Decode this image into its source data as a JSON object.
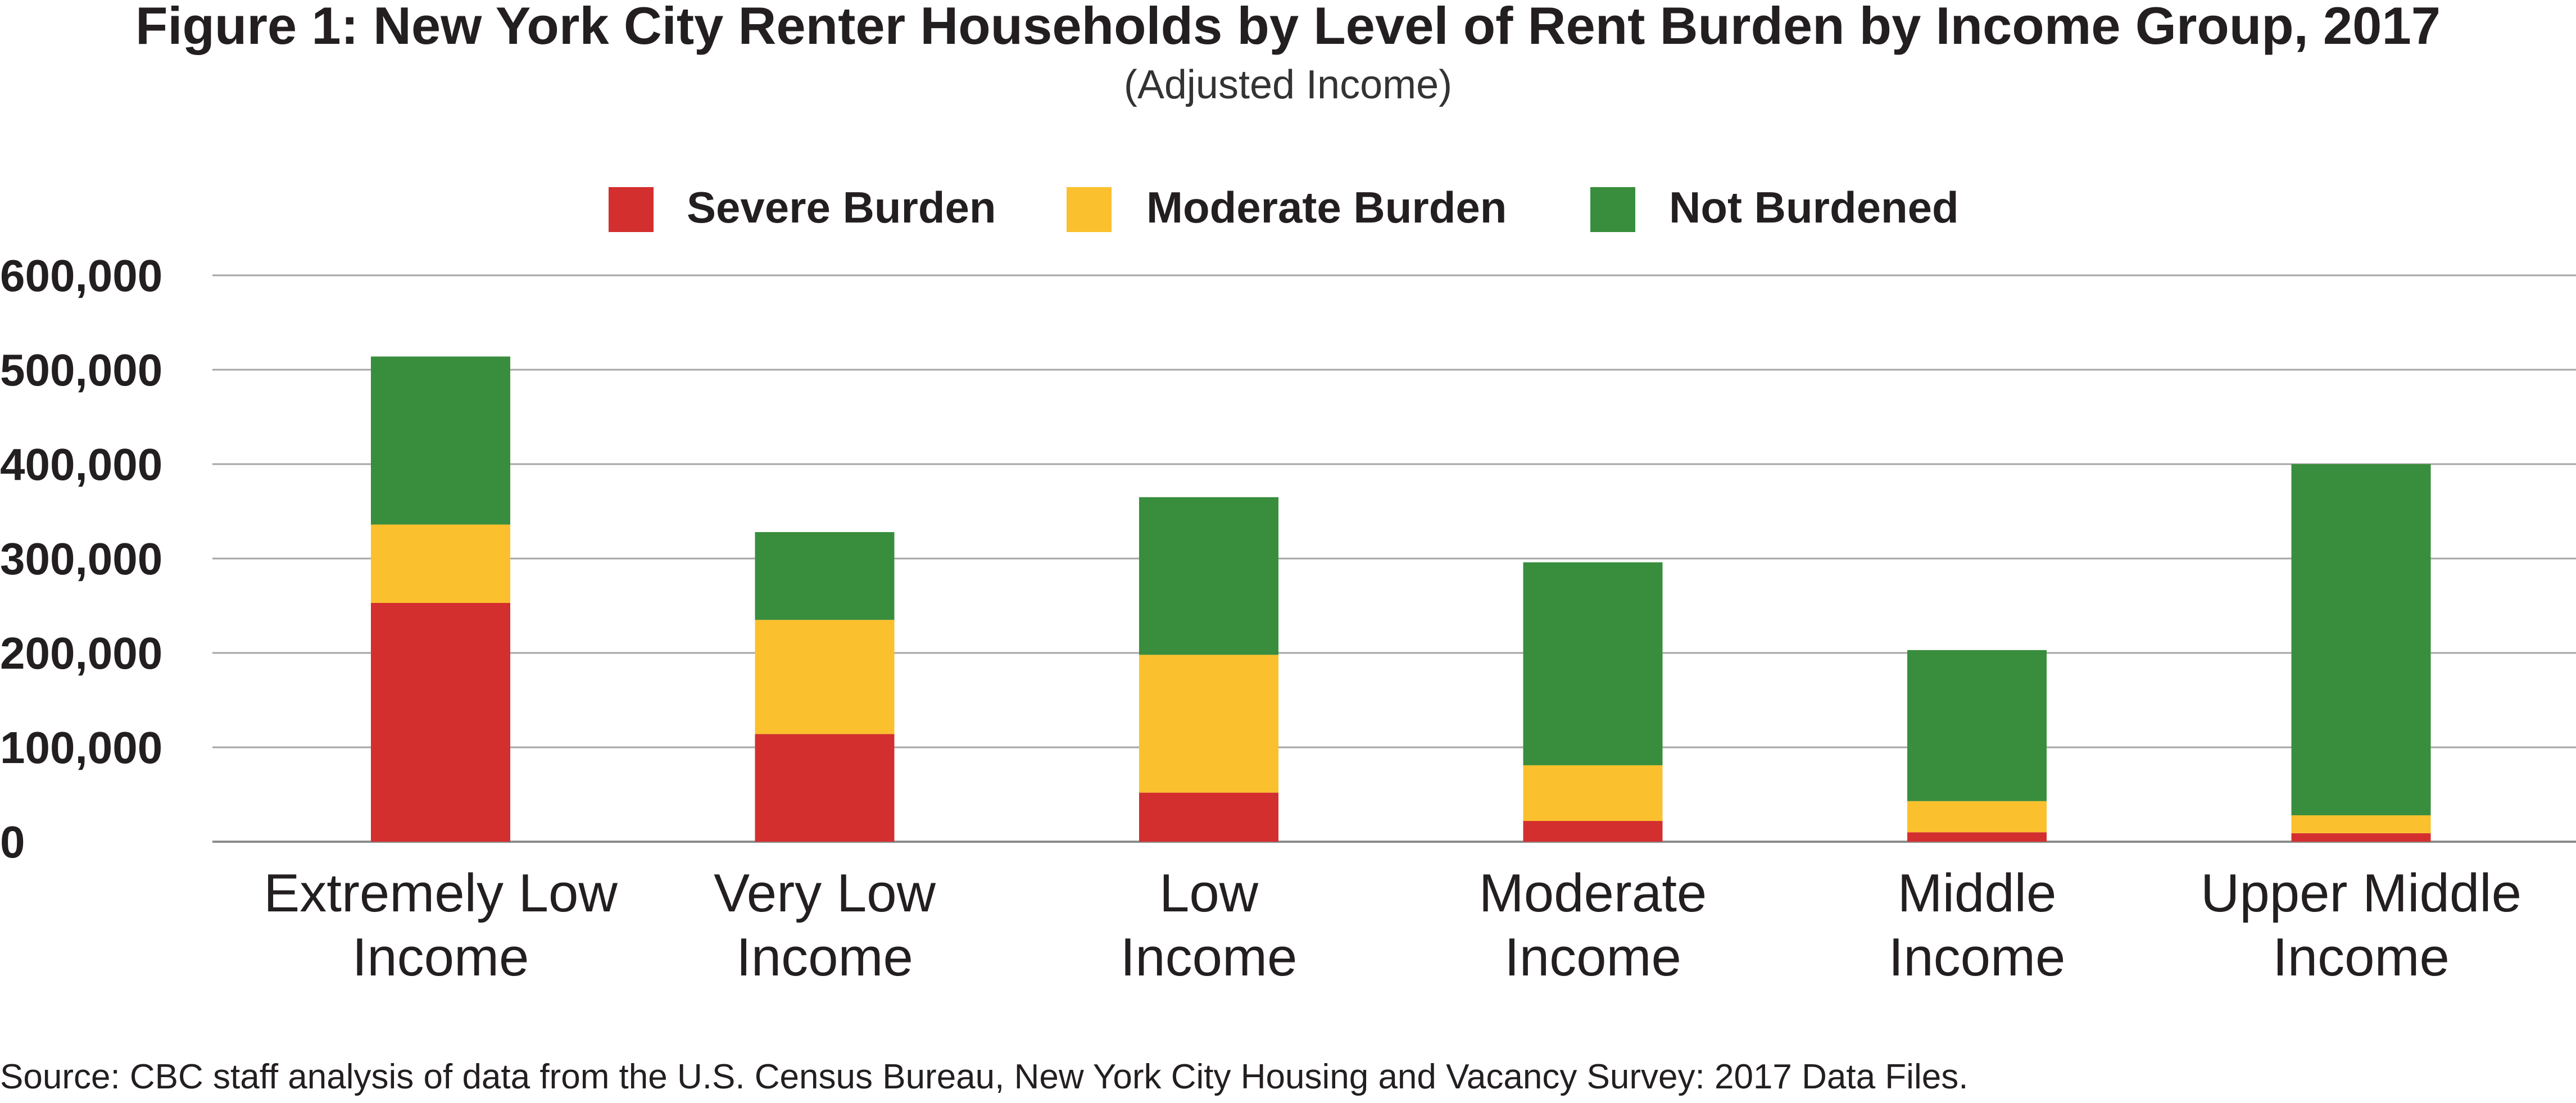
{
  "chart_data": {
    "type": "bar",
    "stacked": true,
    "title": "Figure 1: New York City Renter Households by Level of Rent Burden by Income Group, 2017",
    "subtitle": "(Adjusted Income)",
    "xlabel": "",
    "ylabel": "",
    "categories": [
      [
        "Extremely Low",
        "Income"
      ],
      [
        "Very Low",
        "Income"
      ],
      [
        "Low",
        "Income"
      ],
      [
        "Moderate",
        "Income"
      ],
      [
        "Middle",
        "Income"
      ],
      [
        "Upper Middle",
        "Income"
      ]
    ],
    "series": [
      {
        "name": "Severe Burden",
        "color": "#d32f2f",
        "values": [
          253000,
          114000,
          52000,
          22000,
          10000,
          9000
        ]
      },
      {
        "name": "Moderate Burden",
        "color": "#fbc02d",
        "values": [
          83000,
          121000,
          146000,
          59000,
          33000,
          19000
        ]
      },
      {
        "name": "Not Burdened",
        "color": "#388e3c",
        "values": [
          178000,
          93000,
          167000,
          215000,
          160000,
          372000
        ]
      }
    ],
    "ylim": [
      0,
      600000
    ],
    "yticks": [
      0,
      100000,
      200000,
      300000,
      400000,
      500000,
      600000
    ],
    "ytick_labels": [
      "0",
      "100,000",
      "200,000",
      "300,000",
      "400,000",
      "500,000",
      "600,000"
    ],
    "grid": true,
    "legend_position": "top"
  },
  "source": "Source: CBC staff analysis of data from the U.S. Census Bureau, New York City Housing and Vacancy Survey: 2017 Data Files."
}
